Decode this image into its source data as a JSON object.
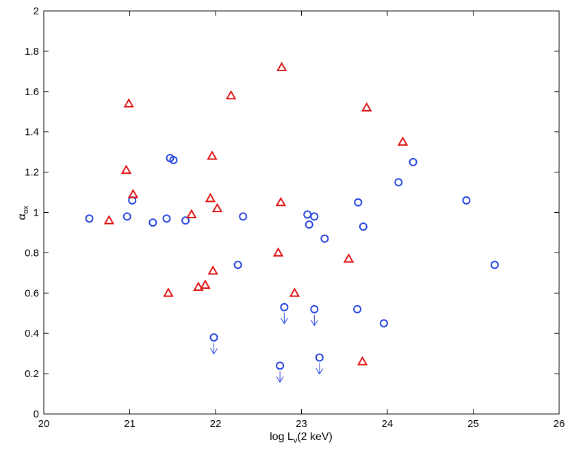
{
  "chart_data": {
    "type": "scatter",
    "title": "",
    "xlabel": "log L",
    "xlabel_sub": "ν",
    "xlabel_suffix": "(2 keV)",
    "ylabel": "α",
    "ylabel_sub": "ox",
    "xlim": [
      20,
      26
    ],
    "ylim": [
      0,
      2
    ],
    "xticks": [
      20,
      21,
      22,
      23,
      24,
      25,
      26
    ],
    "xtick_labels": [
      "20",
      "21",
      "22",
      "23",
      "24",
      "25",
      "26"
    ],
    "yticks": [
      0,
      0.2,
      0.4,
      0.6,
      0.8,
      1,
      1.2,
      1.4,
      1.6,
      1.8,
      2
    ],
    "ytick_labels": [
      "0",
      "0.2",
      "0.4",
      "0.6",
      "0.8",
      "1",
      "1.2",
      "1.4",
      "1.6",
      "1.8",
      "2"
    ],
    "grid": false,
    "series": [
      {
        "marker": "circle",
        "color": "#1f3fe0",
        "points": [
          {
            "x": 20.53,
            "y": 0.97
          },
          {
            "x": 20.97,
            "y": 0.98
          },
          {
            "x": 21.03,
            "y": 1.06
          },
          {
            "x": 21.27,
            "y": 0.95
          },
          {
            "x": 21.43,
            "y": 0.97
          },
          {
            "x": 21.47,
            "y": 1.27
          },
          {
            "x": 21.51,
            "y": 1.26
          },
          {
            "x": 21.65,
            "y": 0.96
          },
          {
            "x": 22.26,
            "y": 0.74
          },
          {
            "x": 22.32,
            "y": 0.98
          },
          {
            "x": 23.07,
            "y": 0.99
          },
          {
            "x": 23.09,
            "y": 0.94
          },
          {
            "x": 23.15,
            "y": 0.98
          },
          {
            "x": 23.27,
            "y": 0.87
          },
          {
            "x": 23.66,
            "y": 1.05
          },
          {
            "x": 23.72,
            "y": 0.93
          },
          {
            "x": 23.65,
            "y": 0.52
          },
          {
            "x": 23.96,
            "y": 0.45
          },
          {
            "x": 24.13,
            "y": 1.15
          },
          {
            "x": 24.3,
            "y": 1.25
          },
          {
            "x": 24.92,
            "y": 1.06
          },
          {
            "x": 25.25,
            "y": 0.74
          }
        ]
      },
      {
        "marker": "circle-upper-limit",
        "color": "#1f3fe0",
        "points": [
          {
            "x": 21.98,
            "y": 0.38
          },
          {
            "x": 22.75,
            "y": 0.24
          },
          {
            "x": 22.8,
            "y": 0.53
          },
          {
            "x": 23.15,
            "y": 0.52
          },
          {
            "x": 23.21,
            "y": 0.28
          }
        ]
      },
      {
        "marker": "triangle",
        "color": "#e01010",
        "points": [
          {
            "x": 20.76,
            "y": 0.96
          },
          {
            "x": 20.96,
            "y": 1.21
          },
          {
            "x": 20.99,
            "y": 1.54
          },
          {
            "x": 21.04,
            "y": 1.09
          },
          {
            "x": 21.45,
            "y": 0.6
          },
          {
            "x": 21.72,
            "y": 0.99
          },
          {
            "x": 21.8,
            "y": 0.63
          },
          {
            "x": 21.88,
            "y": 0.64
          },
          {
            "x": 21.94,
            "y": 1.07
          },
          {
            "x": 21.96,
            "y": 1.28
          },
          {
            "x": 21.97,
            "y": 0.71
          },
          {
            "x": 22.02,
            "y": 1.02
          },
          {
            "x": 22.18,
            "y": 1.58
          },
          {
            "x": 22.73,
            "y": 0.8
          },
          {
            "x": 22.76,
            "y": 1.05
          },
          {
            "x": 22.77,
            "y": 1.72
          },
          {
            "x": 22.92,
            "y": 0.6
          },
          {
            "x": 23.55,
            "y": 0.77
          },
          {
            "x": 23.71,
            "y": 0.26
          },
          {
            "x": 23.76,
            "y": 1.52
          },
          {
            "x": 24.18,
            "y": 1.35
          }
        ]
      }
    ]
  }
}
